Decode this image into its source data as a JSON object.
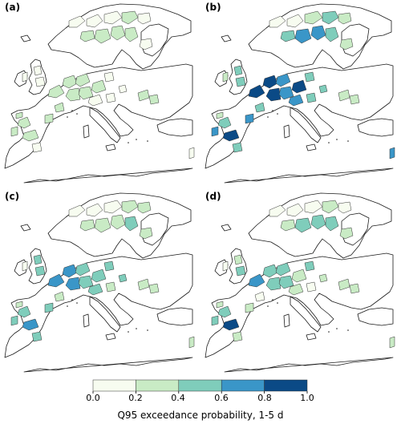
{
  "panels": [
    {
      "id": "a",
      "label": "(a)",
      "regions": [
        0,
        0,
        0,
        1,
        0,
        1,
        1,
        1,
        1,
        0,
        0,
        0,
        0,
        1,
        1,
        1,
        1,
        1,
        1,
        0,
        0,
        1,
        1,
        1,
        1,
        1,
        0,
        1,
        1,
        1,
        0,
        0,
        0
      ]
    },
    {
      "id": "b",
      "label": "(b)",
      "regions": [
        0,
        0,
        1,
        2,
        1,
        2,
        3,
        3,
        2,
        1,
        1,
        2,
        2,
        4,
        4,
        3,
        4,
        3,
        4,
        3,
        2,
        1,
        1,
        2,
        4,
        3,
        2,
        3,
        2,
        1,
        2,
        2,
        3
      ]
    },
    {
      "id": "c",
      "label": "(c)",
      "regions": [
        0,
        0,
        0,
        1,
        1,
        1,
        1,
        1,
        2,
        1,
        0,
        2,
        2,
        3,
        3,
        2,
        3,
        2,
        2,
        2,
        1,
        1,
        1,
        2,
        3,
        2,
        2,
        2,
        1,
        1,
        2,
        2,
        1
      ]
    },
    {
      "id": "d",
      "label": "(d)",
      "regions": [
        0,
        0,
        0,
        1,
        0,
        1,
        2,
        2,
        2,
        1,
        0,
        1,
        2,
        3,
        2,
        2,
        2,
        2,
        1,
        1,
        0,
        1,
        1,
        2,
        4,
        2,
        1,
        1,
        0,
        1,
        2,
        1,
        1
      ]
    }
  ],
  "colorbar": {
    "title": "Q95 exceedance probability, 1-5 d",
    "ticks": [
      "0.0",
      "0.2",
      "0.4",
      "0.6",
      "0.8",
      "1.0"
    ],
    "colors": [
      "#f7fcf0",
      "#c9ebc5",
      "#7fcdbb",
      "#3a96c8",
      "#0b4a86"
    ]
  }
}
